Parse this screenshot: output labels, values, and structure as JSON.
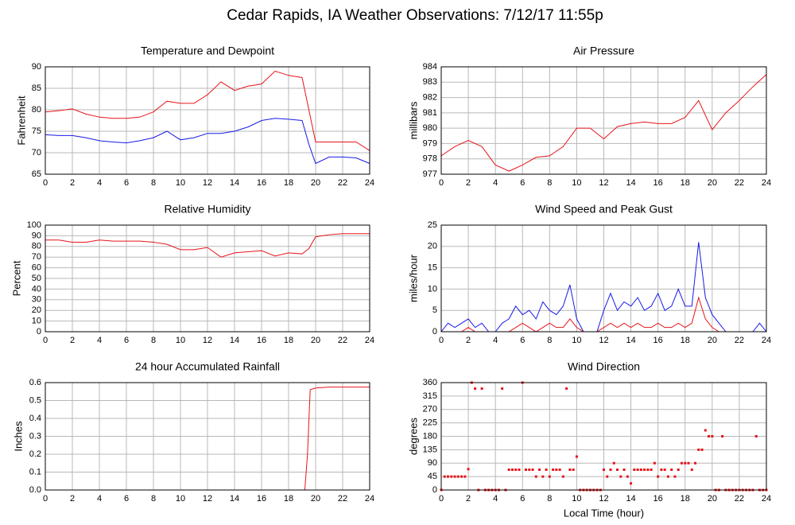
{
  "title": "Cedar Rapids, IA Weather Observations: 7/12/17 11:55p",
  "chart_data": [
    {
      "type": "line",
      "title": "Temperature and Dewpoint",
      "ylabel": "Fahrenheit",
      "x": [
        0,
        1,
        2,
        3,
        4,
        5,
        6,
        7,
        8,
        9,
        10,
        11,
        12,
        13,
        14,
        15,
        16,
        17,
        18,
        19,
        19.5,
        20,
        21,
        22,
        23,
        24
      ],
      "series": [
        {
          "color": "#e8141a",
          "values": [
            79.5,
            79.8,
            80.2,
            79,
            78.3,
            78,
            78,
            78.3,
            79.5,
            82,
            81.5,
            81.5,
            83.5,
            86.5,
            84.5,
            85.5,
            86,
            89,
            88,
            87.5,
            80,
            72.5,
            72.5,
            72.5,
            72.5,
            70.5
          ]
        },
        {
          "color": "#1a1ae8",
          "values": [
            74.2,
            74,
            74,
            73.5,
            72.8,
            72.5,
            72.3,
            72.8,
            73.5,
            75,
            73,
            73.5,
            74.5,
            74.5,
            75,
            76,
            77.5,
            78,
            77.8,
            77.5,
            72,
            67.5,
            69,
            69,
            68.8,
            67.5
          ]
        }
      ],
      "xlim": [
        0,
        24
      ],
      "xticks": [
        0,
        2,
        4,
        6,
        8,
        10,
        12,
        14,
        16,
        18,
        20,
        22,
        24
      ],
      "ylim": [
        65,
        90
      ],
      "yticks": [
        65,
        70,
        75,
        80,
        85,
        90
      ],
      "grid": true
    },
    {
      "type": "line",
      "title": "Air Pressure",
      "ylabel": "millibars",
      "x": [
        0,
        1,
        2,
        3,
        4,
        5,
        6,
        7,
        8,
        9,
        10,
        11,
        12,
        13,
        14,
        15,
        16,
        17,
        18,
        19,
        20,
        21,
        22,
        23,
        24
      ],
      "series": [
        {
          "color": "#e8141a",
          "values": [
            978.2,
            978.8,
            979.2,
            978.8,
            977.6,
            977.2,
            977.6,
            978.1,
            978.2,
            978.8,
            980,
            980,
            979.3,
            980.1,
            980.3,
            980.4,
            980.3,
            980.3,
            980.7,
            981.8,
            979.9,
            981,
            981.8,
            982.7,
            983.5
          ]
        }
      ],
      "xlim": [
        0,
        24
      ],
      "xticks": [
        0,
        2,
        4,
        6,
        8,
        10,
        12,
        14,
        16,
        18,
        20,
        22,
        24
      ],
      "ylim": [
        977,
        984
      ],
      "yticks": [
        977,
        978,
        979,
        980,
        981,
        982,
        983,
        984
      ],
      "grid": true
    },
    {
      "type": "line",
      "title": "Relative Humidity",
      "ylabel": "Percent",
      "x": [
        0,
        1,
        2,
        3,
        4,
        5,
        6,
        7,
        8,
        9,
        10,
        11,
        12,
        13,
        14,
        15,
        16,
        17,
        18,
        19,
        19.5,
        20,
        21,
        22,
        23,
        24
      ],
      "series": [
        {
          "color": "#e8141a",
          "values": [
            86,
            86,
            84,
            84,
            86,
            85,
            85,
            85,
            84,
            82,
            77,
            77,
            79,
            70,
            74,
            75,
            76,
            71,
            74,
            73,
            78,
            89,
            91,
            92,
            92,
            92
          ]
        }
      ],
      "xlim": [
        0,
        24
      ],
      "xticks": [
        0,
        2,
        4,
        6,
        8,
        10,
        12,
        14,
        16,
        18,
        20,
        22,
        24
      ],
      "ylim": [
        0,
        100
      ],
      "yticks": [
        0,
        10,
        20,
        30,
        40,
        50,
        60,
        70,
        80,
        90,
        100
      ],
      "grid": true
    },
    {
      "type": "line",
      "title": "Wind Speed and Peak Gust",
      "ylabel": "miles/hour",
      "x": [
        0,
        0.5,
        1,
        1.5,
        2,
        2.5,
        3,
        3.5,
        4,
        4.5,
        5,
        5.5,
        6,
        6.5,
        7,
        7.5,
        8,
        8.5,
        9,
        9.5,
        10,
        10.5,
        11,
        11.5,
        12,
        12.5,
        13,
        13.5,
        14,
        14.5,
        15,
        15.5,
        16,
        16.5,
        17,
        17.5,
        18,
        18.5,
        19,
        19.5,
        20,
        20.5,
        21,
        21.5,
        22,
        22.5,
        23,
        23.5,
        24
      ],
      "series": [
        {
          "color": "#1a1ae8",
          "values": [
            0,
            2,
            1,
            2,
            3,
            1,
            2,
            0,
            0,
            2,
            3,
            6,
            4,
            5,
            3,
            7,
            5,
            4,
            6,
            11,
            3,
            0,
            0,
            0,
            5,
            9,
            5,
            7,
            6,
            8,
            5,
            6,
            9,
            5,
            6,
            10,
            6,
            6,
            21,
            8,
            4,
            2,
            0,
            0,
            0,
            0,
            0,
            2,
            0
          ]
        },
        {
          "color": "#e8141a",
          "values": [
            0,
            0,
            0,
            0,
            1,
            0,
            0,
            0,
            0,
            0,
            0,
            1,
            2,
            1,
            0,
            1,
            2,
            1,
            1,
            3,
            1,
            0,
            0,
            0,
            1,
            2,
            1,
            2,
            1,
            2,
            1,
            1,
            2,
            1,
            1,
            2,
            1,
            2,
            8,
            3,
            1,
            0,
            0,
            0,
            0,
            0,
            0,
            0,
            0
          ]
        }
      ],
      "xlim": [
        0,
        24
      ],
      "xticks": [
        0,
        2,
        4,
        6,
        8,
        10,
        12,
        14,
        16,
        18,
        20,
        22,
        24
      ],
      "ylim": [
        0,
        25
      ],
      "yticks": [
        0,
        5,
        10,
        15,
        20,
        25
      ],
      "grid": true
    },
    {
      "type": "line",
      "title": "24 hour Accumulated Rainfall",
      "ylabel": "Inches",
      "x": [
        0,
        19.2,
        19.4,
        19.6,
        20,
        21,
        24
      ],
      "series": [
        {
          "color": "#e8141a",
          "values": [
            0,
            0,
            0.2,
            0.56,
            0.57,
            0.575,
            0.575
          ]
        }
      ],
      "xlim": [
        0,
        24
      ],
      "xticks": [
        0,
        2,
        4,
        6,
        8,
        10,
        12,
        14,
        16,
        18,
        20,
        22,
        24
      ],
      "ylim": [
        0,
        0.6
      ],
      "yticks": [
        {
          "value": 0,
          "label": "0.0"
        },
        0.1,
        0.2,
        0.3,
        0.4,
        0.5,
        0.6
      ],
      "grid": true
    },
    {
      "type": "scatter",
      "title": "Wind Direction",
      "ylabel": "degrees",
      "xlabel": "Local Time (hour)",
      "x": [
        0,
        0.25,
        0.5,
        0.75,
        1,
        1.25,
        1.5,
        1.75,
        2,
        2.25,
        2.5,
        2.75,
        3,
        3.25,
        3.5,
        3.75,
        4,
        4.25,
        4.5,
        4.75,
        5,
        5.25,
        5.5,
        5.75,
        6,
        6.25,
        6.5,
        6.75,
        7,
        7.25,
        7.5,
        7.75,
        8,
        8.25,
        8.5,
        8.75,
        9,
        9.25,
        9.5,
        9.75,
        10,
        10.25,
        10.5,
        10.75,
        11,
        11.25,
        11.5,
        11.75,
        12,
        12.25,
        12.5,
        12.75,
        13,
        13.25,
        13.5,
        13.75,
        14,
        14.25,
        14.5,
        14.75,
        15,
        15.25,
        15.5,
        15.75,
        16,
        16.25,
        16.5,
        16.75,
        17,
        17.25,
        17.5,
        17.75,
        18,
        18.25,
        18.5,
        18.75,
        19,
        19.25,
        19.5,
        19.75,
        20,
        20.25,
        20.5,
        20.75,
        21,
        21.25,
        21.5,
        21.75,
        22,
        22.25,
        22.5,
        22.75,
        23,
        23.25,
        23.5,
        23.75,
        24
      ],
      "series": [
        {
          "color": "#e8141a",
          "values": [
            0,
            45,
            45,
            45,
            45,
            45,
            45,
            45,
            70,
            360,
            340,
            0,
            340,
            0,
            0,
            0,
            0,
            0,
            340,
            0,
            68,
            68,
            68,
            68,
            360,
            68,
            68,
            68,
            45,
            68,
            45,
            68,
            45,
            68,
            68,
            68,
            45,
            340,
            68,
            68,
            112,
            0,
            0,
            0,
            0,
            0,
            0,
            0,
            68,
            45,
            68,
            90,
            68,
            45,
            68,
            45,
            22,
            68,
            68,
            68,
            68,
            68,
            68,
            90,
            45,
            68,
            68,
            45,
            68,
            45,
            68,
            90,
            90,
            90,
            68,
            90,
            135,
            135,
            200,
            180,
            180,
            0,
            0,
            180,
            0,
            0,
            0,
            0,
            0,
            0,
            0,
            0,
            0,
            180,
            0,
            0,
            0
          ]
        }
      ],
      "xlim": [
        0,
        24
      ],
      "xticks": [
        0,
        2,
        4,
        6,
        8,
        10,
        12,
        14,
        16,
        18,
        20,
        22,
        24
      ],
      "ylim": [
        0,
        360
      ],
      "yticks": [
        0,
        45,
        90,
        135,
        180,
        225,
        270,
        315,
        360
      ],
      "grid": true
    }
  ]
}
